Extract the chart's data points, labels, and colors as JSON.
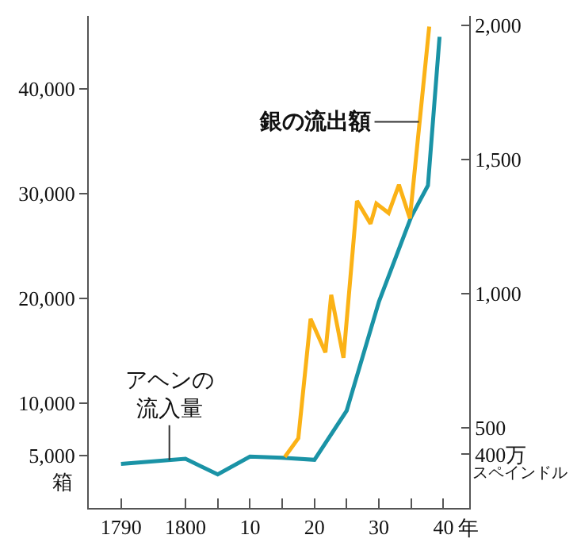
{
  "chart_data": {
    "type": "line",
    "ylabel": "箱",
    "y2label": "スペインドル",
    "xlim": [
      1785,
      1844
    ],
    "xticks": [
      1790,
      1800,
      {
        "value": 1805,
        "label": null
      },
      {
        "value": 1810,
        "label": "10"
      },
      {
        "value": 1815,
        "label": null
      },
      {
        "value": 1820,
        "label": "20"
      },
      {
        "value": 1825,
        "label": null
      },
      {
        "value": 1830,
        "label": "30"
      },
      {
        "value": 1835,
        "label": null
      },
      {
        "value": 1840,
        "label": "40"
      }
    ],
    "xlabel": "年",
    "ylim": [
      0,
      47000
    ],
    "yticks": [
      {
        "value": 5000,
        "label": "5,000"
      },
      {
        "value": 10000,
        "label": "10,000"
      },
      {
        "value": 20000,
        "label": "20,000"
      },
      {
        "value": 30000,
        "label": "30,000"
      },
      {
        "value": 40000,
        "label": "40,000"
      }
    ],
    "y2lim": [
      200,
      2035
    ],
    "y2ticks": [
      {
        "value": 400,
        "label": "400万"
      },
      500,
      {
        "value": 1000,
        "label": "1,000"
      },
      {
        "value": 1500,
        "label": "1,500"
      },
      {
        "value": 2000,
        "label": "2,000"
      }
    ],
    "series": [
      {
        "name": "アヘンの流入量",
        "color": "#1a93a6",
        "x": [
          1790,
          1800,
          1805,
          1810,
          1815,
          1820,
          1825,
          1830,
          1835,
          1837.6,
          1839.4
        ],
        "values": [
          4200,
          4700,
          3200,
          4900,
          4800,
          4600,
          9300,
          19700,
          27800,
          30800,
          45000
        ]
      },
      {
        "name": "銀の流出額",
        "color": "#fbb216",
        "axis": "y2",
        "x": [
          1815.4,
          1817.5,
          1819.4,
          1821.7,
          1822.6,
          1824.5,
          1826.6,
          1828.7,
          1829.6,
          1831.5,
          1833.1,
          1834.8,
          1837.8
        ],
        "values": [
          390,
          460,
          905,
          780,
          995,
          760,
          1345,
          1260,
          1335,
          1300,
          1405,
          1280,
          1995
        ]
      }
    ],
    "legend": false,
    "marker": "none",
    "line_style": "solid"
  }
}
